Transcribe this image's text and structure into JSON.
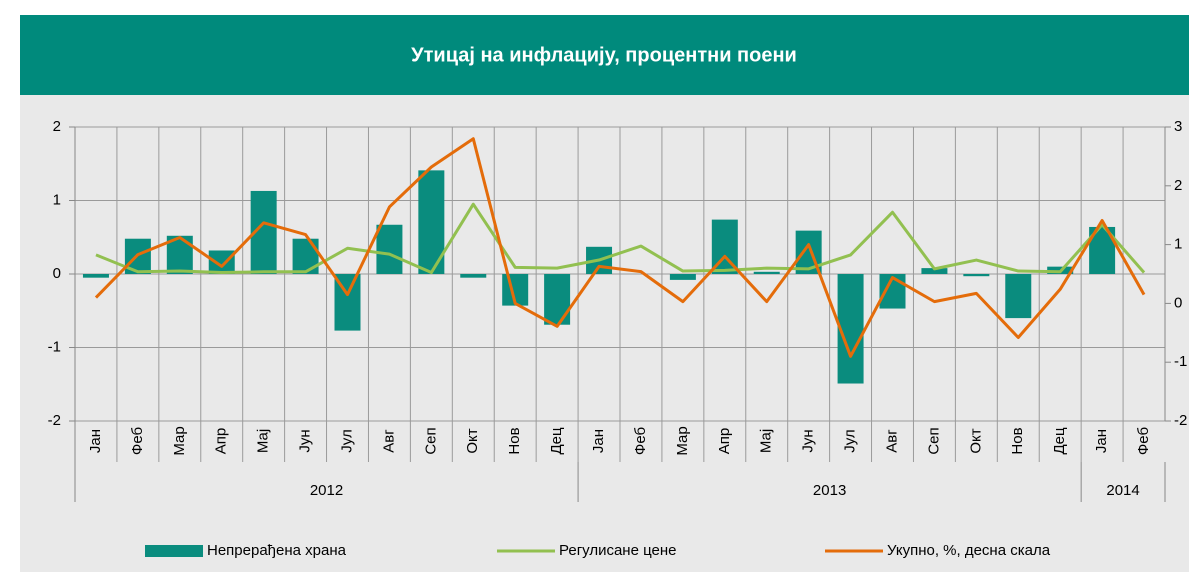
{
  "chart_data": {
    "type": "bar_line",
    "title": "Утицај на инфлацију, процентни поени",
    "categories": [
      "Јан",
      "Феб",
      "Мар",
      "Апр",
      "Мај",
      "Јун",
      "Јул",
      "Авг",
      "Сеп",
      "Окт",
      "Нов",
      "Дец",
      "Јан",
      "Феб",
      "Мар",
      "Апр",
      "Мај",
      "Јун",
      "Јул",
      "Авг",
      "Сеп",
      "Окт",
      "Нов",
      "Дец",
      "Јан",
      "Феб"
    ],
    "x_groups": [
      {
        "label": "2012",
        "count": 12
      },
      {
        "label": "2013",
        "count": 12
      },
      {
        "label": "2014",
        "count": 2
      }
    ],
    "series": [
      {
        "name": "Непрерађена храна",
        "type": "bar",
        "color": "#0a8c7e",
        "values": [
          -0.05,
          0.48,
          0.52,
          0.32,
          1.13,
          0.48,
          -0.77,
          0.67,
          1.41,
          -0.05,
          -0.43,
          -0.69,
          0.37,
          0,
          -0.08,
          0.74,
          0.03,
          0.59,
          -1.49,
          -0.47,
          0.08,
          -0.03,
          -0.6,
          0.1,
          0.64,
          0
        ]
      },
      {
        "name": "Регулисане цене",
        "type": "line",
        "color": "#92c050",
        "values": [
          0.26,
          0.03,
          0.04,
          0.02,
          0.03,
          0.03,
          0.35,
          0.27,
          0.02,
          0.95,
          0.09,
          0.08,
          0.19,
          0.38,
          0.04,
          0.05,
          0.08,
          0.07,
          0.26,
          0.84,
          0.07,
          0.19,
          0.04,
          0.03,
          0.67,
          0.02
        ]
      },
      {
        "name": "Укупно, %, десна скала",
        "type": "line",
        "axis": "y2",
        "color": "#e46c0a",
        "values": [
          0.1,
          0.83,
          1.12,
          0.63,
          1.37,
          1.17,
          0.15,
          1.64,
          2.32,
          2.8,
          0,
          -0.39,
          0.63,
          0.54,
          0.03,
          0.8,
          0.03,
          1,
          -0.9,
          0.44,
          0.03,
          0.17,
          -0.58,
          0.24,
          1.41,
          0.15
        ]
      }
    ],
    "ylim": [
      -2,
      2
    ],
    "yticks": [
      -2,
      -1,
      0,
      1,
      2
    ],
    "y2lim": [
      -2,
      3
    ],
    "y2ticks": [
      -2,
      -1,
      0,
      1,
      2,
      3
    ],
    "grid": true,
    "legend": "bottom"
  }
}
